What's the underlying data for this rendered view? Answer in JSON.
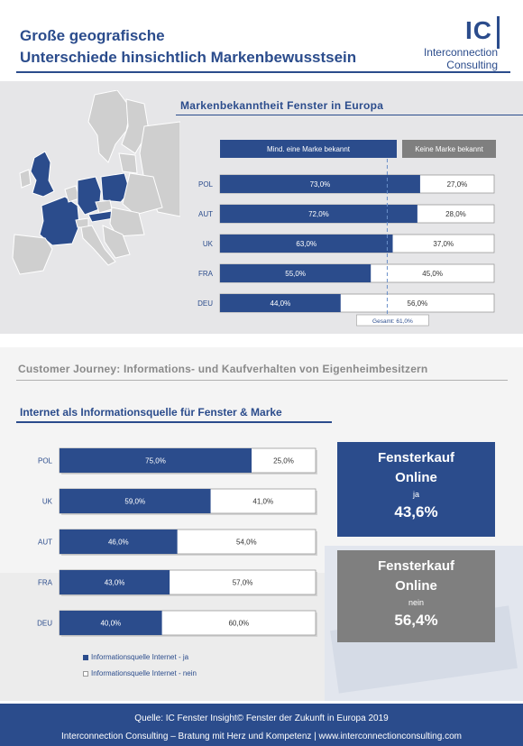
{
  "header": {
    "title_line1": "Große geografische",
    "title_line2": "Unterschiede hinsichtlich Markenbewusstsein",
    "logo_letters": "IC",
    "logo_line1": "Interconnection",
    "logo_line2": "Consulting"
  },
  "section1": {
    "title": "Markenbekanntheit  Fenster in Europa",
    "legend_known": "Mind. eine Marke bekannt",
    "legend_unknown": "Keine  Marke bekannt",
    "total_label": "Gesamt: 61,0%"
  },
  "section2": {
    "journey_title": "Customer Journey: Informations- und Kaufverhalten von Eigenheimbesitzern",
    "title": "Internet als Informationsquelle für Fenster & Marke",
    "legend_yes": "Informationsquelle Internet - ja",
    "legend_no": "Informationsquelle Internet - nein"
  },
  "kpi": {
    "yes": {
      "title1": "Fensterkauf",
      "title2": "Online",
      "sub": "ja",
      "value": "43,6%"
    },
    "no": {
      "title1": "Fensterkauf",
      "title2": "Online",
      "sub": "nein",
      "value": "56,4%"
    }
  },
  "footer": {
    "line1": "Quelle: IC Fenster Insight© Fenster der Zukunft in Europa 2019",
    "line2": "Interconnection  Consulting – Bratung mit Herz und Kompetenz | www.interconnectionconsulting.com"
  },
  "colors": {
    "primary": "#2b4c8c",
    "grey": "#7f7f7f",
    "map_grey": "#cfcfcf",
    "map_blue": "#2b4c8c"
  },
  "chart_data": [
    {
      "type": "bar",
      "orientation": "horizontal",
      "stacked": true,
      "title": "Markenbekanntheit  Fenster in Europa",
      "categories": [
        "POL",
        "AUT",
        "UK",
        "FRA",
        "DEU"
      ],
      "series": [
        {
          "name": "Mind. eine Marke bekannt",
          "values": [
            73.0,
            72.0,
            63.0,
            55.0,
            44.0
          ],
          "labels": [
            "73,0%",
            "72,0%",
            "63,0%",
            "55,0%",
            "44,0%"
          ]
        },
        {
          "name": "Keine  Marke bekannt",
          "values": [
            27.0,
            28.0,
            37.0,
            45.0,
            56.0
          ],
          "labels": [
            "27,0%",
            "28,0%",
            "37,0%",
            "45,0%",
            "56,0%"
          ]
        }
      ],
      "reference_line": {
        "value": 61.0,
        "label": "Gesamt: 61,0%"
      },
      "xlim": [
        0,
        100
      ]
    },
    {
      "type": "bar",
      "orientation": "horizontal",
      "stacked": true,
      "title": "Internet als Informationsquelle für Fenster & Marke",
      "categories": [
        "POL",
        "UK",
        "AUT",
        "FRA",
        "DEU"
      ],
      "series": [
        {
          "name": "Informationsquelle Internet - ja",
          "values": [
            75.0,
            59.0,
            46.0,
            43.0,
            40.0
          ],
          "labels": [
            "75,0%",
            "59,0%",
            "46,0%",
            "43,0%",
            "40,0%"
          ]
        },
        {
          "name": "Informationsquelle Internet - nein",
          "values": [
            25.0,
            41.0,
            54.0,
            57.0,
            60.0
          ],
          "labels": [
            "25,0%",
            "41,0%",
            "54,0%",
            "57,0%",
            "60,0%"
          ]
        }
      ],
      "xlim": [
        0,
        100
      ]
    }
  ]
}
